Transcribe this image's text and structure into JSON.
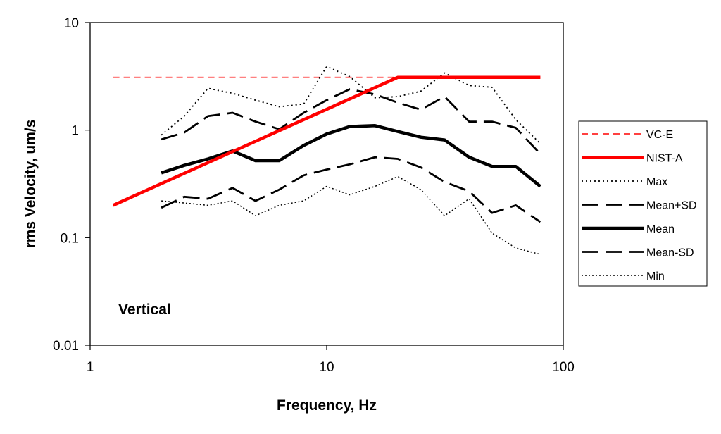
{
  "chart_data": {
    "type": "line",
    "xlabel": "Frequency, Hz",
    "ylabel": "rms Velocity, um/s",
    "xscale": "log",
    "yscale": "log",
    "xlim": [
      1,
      100
    ],
    "ylim": [
      0.01,
      10
    ],
    "x_ticks": [
      "1",
      "10",
      "100"
    ],
    "y_ticks": [
      "0.01",
      "0.1",
      "1",
      "10"
    ],
    "grid": false,
    "legend_position": "right",
    "annotation": "Vertical",
    "series": [
      {
        "name": "VC-E",
        "color": "#ff0000",
        "style": "dashed-thin",
        "x": [
          1.25,
          80
        ],
        "y": [
          3.1,
          3.1
        ]
      },
      {
        "name": "NIST-A",
        "color": "#ff0000",
        "style": "solid-thick",
        "x": [
          1.25,
          20,
          80
        ],
        "y": [
          0.2,
          3.1,
          3.1
        ]
      },
      {
        "name": "Max",
        "color": "#000000",
        "style": "dotted",
        "x": [
          2,
          2.5,
          3.15,
          4,
          5,
          6.3,
          8,
          10,
          12.5,
          16,
          20,
          25,
          31.5,
          40,
          50,
          63,
          80
        ],
        "y": [
          0.9,
          1.35,
          2.45,
          2.2,
          1.9,
          1.65,
          1.75,
          3.9,
          3.15,
          2.0,
          2.05,
          2.3,
          3.4,
          2.6,
          2.5,
          1.25,
          0.75
        ]
      },
      {
        "name": "Mean+SD",
        "color": "#000000",
        "style": "long-dash",
        "x": [
          2,
          2.5,
          3.15,
          4,
          5,
          6.3,
          8,
          10,
          12.5,
          16,
          20,
          25,
          31.5,
          40,
          50,
          63,
          80
        ],
        "y": [
          0.82,
          0.95,
          1.35,
          1.45,
          1.2,
          1.02,
          1.45,
          1.9,
          2.4,
          2.15,
          1.8,
          1.55,
          2.05,
          1.2,
          1.2,
          1.05,
          0.6
        ]
      },
      {
        "name": "Mean",
        "color": "#000000",
        "style": "solid-thick",
        "x": [
          2,
          2.5,
          3.15,
          4,
          5,
          6.3,
          8,
          10,
          12.5,
          16,
          20,
          25,
          31.5,
          40,
          50,
          63,
          80
        ],
        "y": [
          0.4,
          0.47,
          0.54,
          0.64,
          0.52,
          0.52,
          0.72,
          0.92,
          1.08,
          1.1,
          0.97,
          0.86,
          0.81,
          0.56,
          0.46,
          0.46,
          0.3
        ]
      },
      {
        "name": "Mean-SD",
        "color": "#000000",
        "style": "long-dash",
        "x": [
          2,
          2.5,
          3.15,
          4,
          5,
          6.3,
          8,
          10,
          12.5,
          16,
          20,
          25,
          31.5,
          40,
          50,
          63,
          80
        ],
        "y": [
          0.19,
          0.24,
          0.23,
          0.29,
          0.22,
          0.28,
          0.38,
          0.43,
          0.48,
          0.56,
          0.54,
          0.45,
          0.33,
          0.27,
          0.17,
          0.2,
          0.14
        ]
      },
      {
        "name": "Min",
        "color": "#000000",
        "style": "dotted-fine",
        "x": [
          2,
          2.5,
          3.15,
          4,
          5,
          6.3,
          8,
          10,
          12.5,
          16,
          20,
          25,
          31.5,
          40,
          50,
          63,
          80
        ],
        "y": [
          0.22,
          0.21,
          0.2,
          0.22,
          0.16,
          0.2,
          0.22,
          0.3,
          0.25,
          0.3,
          0.37,
          0.28,
          0.16,
          0.23,
          0.11,
          0.08,
          0.07
        ]
      }
    ],
    "legend": [
      {
        "label": "VC-E",
        "series": 0
      },
      {
        "label": "NIST-A",
        "series": 1
      },
      {
        "label": "Max",
        "series": 2
      },
      {
        "label": "Mean+SD",
        "series": 3
      },
      {
        "label": "Mean",
        "series": 4
      },
      {
        "label": "Mean-SD",
        "series": 5
      },
      {
        "label": "Min",
        "series": 6
      }
    ]
  }
}
